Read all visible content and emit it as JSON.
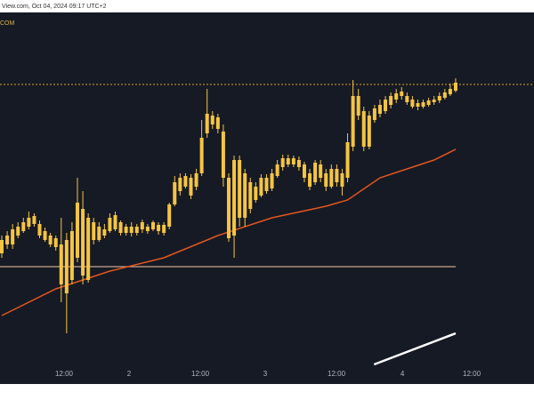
{
  "chart_data": {
    "type": "candlestick",
    "title": "View.com, Oct 04, 2024 09:17 UTC+2",
    "source_label": "COM",
    "color": "#f5c542",
    "open": [
      147,
      157,
      157,
      167,
      172,
      177,
      189,
      180,
      172,
      167,
      164,
      157,
      102,
      117,
      142,
      197,
      117,
      182,
      162,
      174,
      172,
      190,
      182,
      170,
      177,
      170,
      174,
      177,
      174,
      179,
      170,
      177,
      202,
      232,
      222,
      232,
      222,
      237,
      282,
      302,
      300,
      284,
      232,
      167,
      252,
      187,
      227,
      207,
      212,
      232,
      220,
      234,
      244,
      254,
      247,
      252,
      247,
      237,
      227,
      247,
      237,
      222,
      242,
      237,
      232,
      267,
      324,
      307,
      267,
      297,
      304,
      307,
      314,
      320,
      324,
      324,
      320,
      316,
      312,
      314,
      317,
      319,
      322,
      326,
      330
    ],
    "high": [
      167,
      172,
      180,
      182,
      187,
      194,
      192,
      184,
      176,
      170,
      167,
      187,
      170,
      182,
      232,
      217,
      192,
      187,
      182,
      180,
      192,
      194,
      184,
      180,
      182,
      180,
      185,
      180,
      184,
      182,
      182,
      204,
      234,
      237,
      237,
      236,
      242,
      297,
      332,
      307,
      304,
      292,
      237,
      257,
      257,
      242,
      232,
      227,
      236,
      236,
      242,
      252,
      258,
      258,
      257,
      256,
      250,
      242,
      252,
      252,
      242,
      247,
      247,
      242,
      282,
      342,
      332,
      312,
      307,
      314,
      320,
      324,
      328,
      332,
      334,
      328,
      324,
      320,
      320,
      322,
      324,
      328,
      332,
      338,
      344
    ],
    "low": [
      142,
      152,
      152,
      164,
      170,
      174,
      177,
      164,
      160,
      154,
      150,
      92,
      57,
      112,
      137,
      112,
      114,
      157,
      160,
      164,
      170,
      172,
      167,
      167,
      166,
      167,
      170,
      169,
      172,
      168,
      167,
      174,
      200,
      212,
      220,
      208,
      218,
      234,
      277,
      287,
      282,
      222,
      160,
      142,
      177,
      177,
      192,
      204,
      210,
      214,
      217,
      232,
      240,
      244,
      244,
      240,
      227,
      218,
      224,
      227,
      217,
      220,
      222,
      212,
      227,
      262,
      297,
      262,
      264,
      294,
      300,
      304,
      310,
      316,
      320,
      314,
      310,
      308,
      310,
      312,
      314,
      316,
      320,
      324,
      328
    ],
    "close": [
      162,
      167,
      174,
      177,
      182,
      187,
      180,
      167,
      162,
      157,
      154,
      112,
      162,
      172,
      204,
      122,
      187,
      162,
      177,
      167,
      187,
      174,
      170,
      177,
      170,
      177,
      182,
      172,
      182,
      172,
      179,
      202,
      227,
      217,
      234,
      212,
      237,
      277,
      304,
      292,
      287,
      232,
      164,
      252,
      187,
      237,
      197,
      222,
      232,
      217,
      237,
      247,
      254,
      247,
      254,
      244,
      232,
      222,
      249,
      232,
      222,
      242,
      227,
      222,
      272,
      324,
      302,
      267,
      302,
      310,
      314,
      320,
      324,
      327,
      329,
      317,
      312,
      312,
      317,
      319,
      320,
      324,
      328,
      332,
      339
    ],
    "ma": {
      "color": "#e2571e",
      "x": [
        0,
        10,
        20,
        30,
        40,
        50,
        60,
        64,
        70,
        80,
        84
      ],
      "values": [
        77,
        107,
        127,
        142,
        167,
        187,
        200,
        207,
        232,
        252,
        264
      ]
    },
    "price_line": {
      "color": "#d9a520",
      "value": 337
    },
    "level_line": {
      "color": "#c8a98a",
      "value": 132
    },
    "indicator": {
      "color": "#ffffff",
      "x": [
        68.9,
        84
      ],
      "values": [
        22,
        57
      ]
    },
    "xlim": [
      -0.33,
      98.5
    ],
    "ylim": [
      0,
      418
    ],
    "xticks": [
      {
        "value": 11.53,
        "label": "12:00"
      },
      {
        "value": 23.56,
        "label": "2"
      },
      {
        "value": 36.74,
        "label": "12:00"
      },
      {
        "value": 48.76,
        "label": "3"
      },
      {
        "value": 61.94,
        "label": "12:00"
      },
      {
        "value": 74.14,
        "label": "4"
      },
      {
        "value": 86.98,
        "label": "12:00"
      }
    ]
  }
}
